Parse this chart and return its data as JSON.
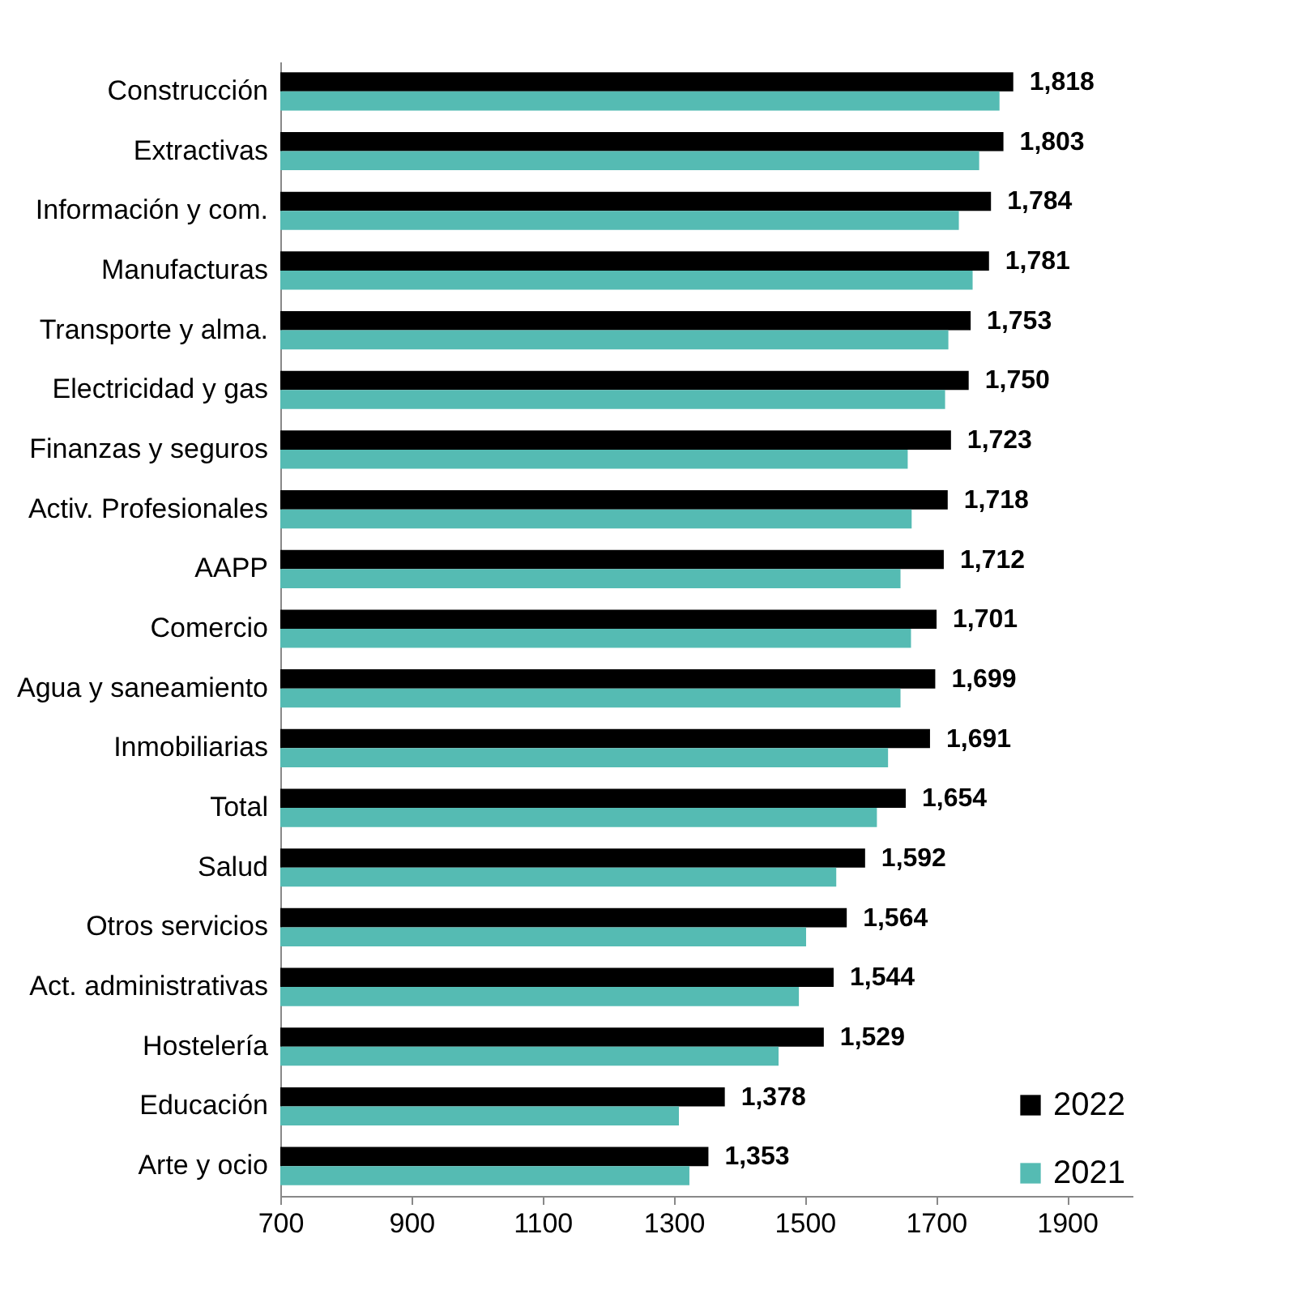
{
  "chart_data": {
    "type": "bar",
    "orientation": "horizontal",
    "categories": [
      "Construcción",
      "Extractivas",
      "Información y com.",
      "Manufacturas",
      "Transporte y alma.",
      "Electricidad y gas",
      "Finanzas y seguros",
      "Activ. Profesionales",
      "AAPP",
      "Comercio",
      "Agua y saneamiento",
      "Inmobiliarias",
      "Total",
      "Salud ",
      "Otros servicios",
      "Act. administrativas",
      "Hostelería",
      "Educación",
      "Arte y ocio"
    ],
    "series": [
      {
        "name": "2022",
        "color": "#000000",
        "values": [
          1818,
          1803,
          1784,
          1781,
          1753,
          1750,
          1723,
          1718,
          1712,
          1701,
          1699,
          1691,
          1654,
          1592,
          1564,
          1544,
          1529,
          1378,
          1353
        ],
        "value_labels": [
          "1,818",
          "1,803",
          "1,784",
          "1,781",
          "1,753",
          "1,750",
          "1,723",
          "1,718",
          "1,712",
          "1,701",
          "1,699",
          "1,691",
          "1,654",
          "1,592",
          "1,564",
          "1,544",
          "1,529",
          "1,378",
          "1,353"
        ]
      },
      {
        "name": "2021",
        "color": "#55bbb3",
        "values": [
          1797,
          1766,
          1735,
          1756,
          1719,
          1714,
          1657,
          1663,
          1646,
          1662,
          1646,
          1627,
          1610,
          1548,
          1502,
          1491,
          1460,
          1308,
          1324
        ]
      }
    ],
    "xlim": [
      700,
      2000
    ],
    "xticks": [
      700,
      900,
      1100,
      1300,
      1500,
      1700,
      1900
    ],
    "legend": "bottom right"
  }
}
